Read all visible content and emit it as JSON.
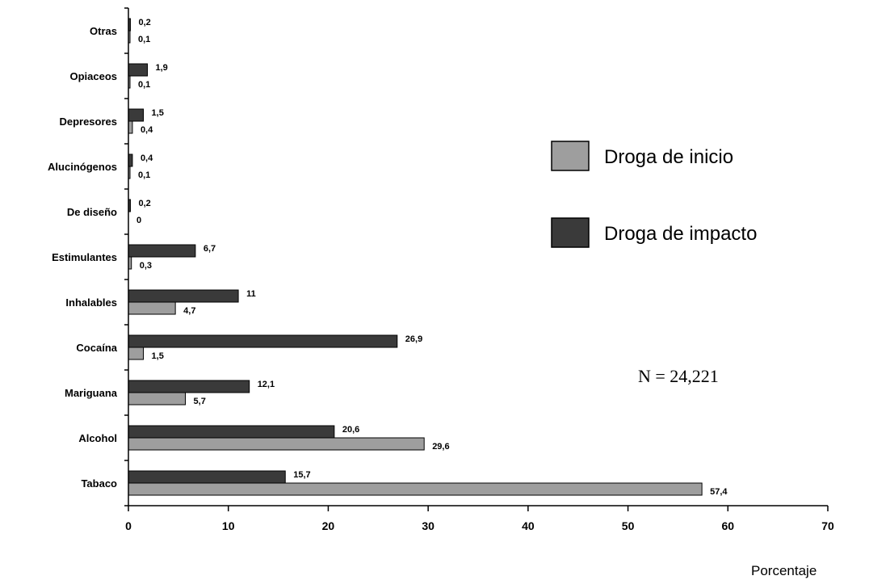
{
  "chart_data": {
    "type": "bar",
    "orientation": "horizontal",
    "categories": [
      "Otras",
      "Opiaceos",
      "Depresores",
      "Alucinógenos",
      "De diseño",
      "Estimulantes",
      "Inhalables",
      "Cocaína",
      "Mariguana",
      "Alcohol",
      "Tabaco"
    ],
    "series": [
      {
        "name": "Droga de impacto",
        "color": "#3a3a3a",
        "values": [
          0.2,
          1.9,
          1.5,
          0.4,
          0.2,
          6.7,
          11,
          26.9,
          12.1,
          20.6,
          15.7
        ],
        "labels": [
          "0,2",
          "1,9",
          "1,5",
          "0,4",
          "0,2",
          "6,7",
          "11",
          "26,9",
          "12,1",
          "20,6",
          "15,7"
        ]
      },
      {
        "name": "Droga de inicio",
        "color": "#9e9e9e",
        "values": [
          0.1,
          0.1,
          0.4,
          0.1,
          0,
          0.3,
          4.7,
          1.5,
          5.7,
          29.6,
          57.4
        ],
        "labels": [
          "0,1",
          "0,1",
          "0,4",
          "0,1",
          "0",
          "0,3",
          "4,7",
          "1,5",
          "5,7",
          "29,6",
          "57,4"
        ]
      }
    ],
    "xlim": [
      0,
      70
    ],
    "xticks": [
      "0",
      "10",
      "20",
      "30",
      "40",
      "50",
      "60",
      "70"
    ],
    "xlabel": "Porcentaje",
    "ylabel": "",
    "legend_position": "right",
    "legend_order": [
      "Droga de inicio",
      "Droga de impacto"
    ],
    "annotation": "N = 24,221",
    "grid": false
  }
}
